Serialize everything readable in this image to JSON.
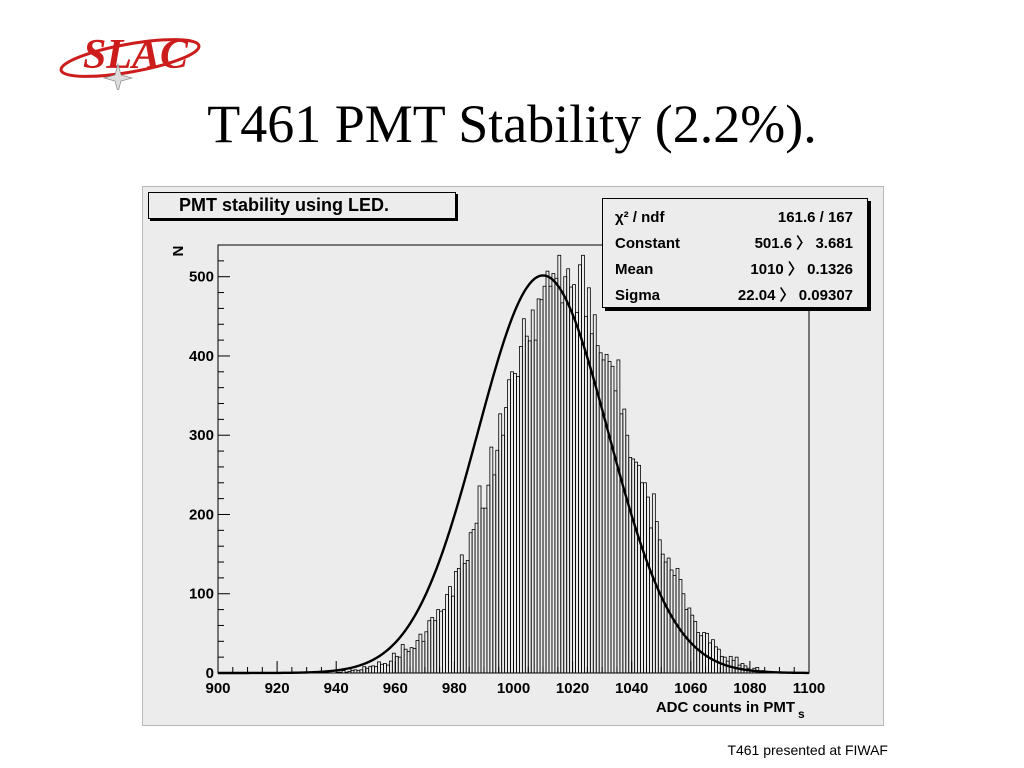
{
  "slide": {
    "title": "T461 PMT Stability (2.2%).",
    "footer": "T461 presented at FIWAF",
    "logo_text": "SLAC"
  },
  "colors": {
    "logo_red": "#cc1c1c",
    "panel_bg": "#ececec",
    "ink": "#000000"
  },
  "chart_data": {
    "type": "bar",
    "title": "PMT stability using LED.",
    "xlabel": "ADC counts in PMT",
    "xlabel_sub": "s",
    "ylabel": "N",
    "xlim": [
      900,
      1100
    ],
    "ylim": [
      0,
      540
    ],
    "xticks": [
      900,
      920,
      940,
      960,
      980,
      1000,
      1020,
      1040,
      1060,
      1080,
      1100
    ],
    "yticks": [
      0,
      100,
      200,
      300,
      400,
      500
    ],
    "bin_width": 1,
    "values": [
      0,
      0,
      0,
      0,
      0,
      0,
      0,
      0,
      0,
      0,
      0,
      0,
      0,
      0,
      0,
      0,
      0,
      0,
      0,
      0,
      0,
      0,
      0,
      0,
      0,
      0,
      0,
      0,
      0,
      0,
      0,
      0,
      0,
      0,
      0,
      0,
      0,
      0,
      0,
      0,
      1,
      1,
      3,
      1,
      2,
      3,
      4,
      3,
      4,
      8,
      6,
      8,
      9,
      8,
      14,
      11,
      12,
      10,
      15,
      25,
      21,
      20,
      36,
      30,
      27,
      32,
      31,
      41,
      49,
      40,
      52,
      66,
      70,
      66,
      80,
      78,
      80,
      99,
      109,
      97,
      128,
      132,
      149,
      138,
      142,
      177,
      181,
      189,
      236,
      208,
      208,
      237,
      285,
      250,
      281,
      327,
      300,
      335,
      370,
      380,
      378,
      374,
      412,
      447,
      425,
      419,
      458,
      420,
      472,
      471,
      488,
      507,
      488,
      504,
      498,
      527,
      467,
      500,
      510,
      487,
      490,
      455,
      515,
      527,
      450,
      486,
      428,
      452,
      413,
      404,
      395,
      402,
      393,
      387,
      356,
      395,
      327,
      333,
      300,
      272,
      270,
      266,
      262,
      240,
      240,
      222,
      183,
      226,
      191,
      168,
      150,
      140,
      145,
      130,
      123,
      132,
      118,
      100,
      80,
      82,
      73,
      65,
      51,
      47,
      51,
      50,
      38,
      42,
      33,
      30,
      21,
      20,
      15,
      21,
      16,
      20,
      10,
      12,
      9,
      6,
      4,
      6,
      7,
      2,
      3,
      2,
      2,
      1,
      0,
      1,
      0,
      0,
      0,
      0,
      0,
      0,
      0,
      0,
      0,
      0,
      0,
      0
    ],
    "fit": {
      "function": "gaus",
      "constant": 501.6,
      "mean": 1010,
      "sigma": 22.04
    },
    "stats": [
      {
        "label": "χ² / ndf",
        "value": "161.6 / 167"
      },
      {
        "label": "Constant",
        "value": "501.6 〉 3.681"
      },
      {
        "label": "Mean",
        "value": "1010 〉 0.1326"
      },
      {
        "label": "Sigma",
        "value": "22.04 〉 0.09307"
      }
    ],
    "grid": false,
    "legend": "top-right"
  }
}
